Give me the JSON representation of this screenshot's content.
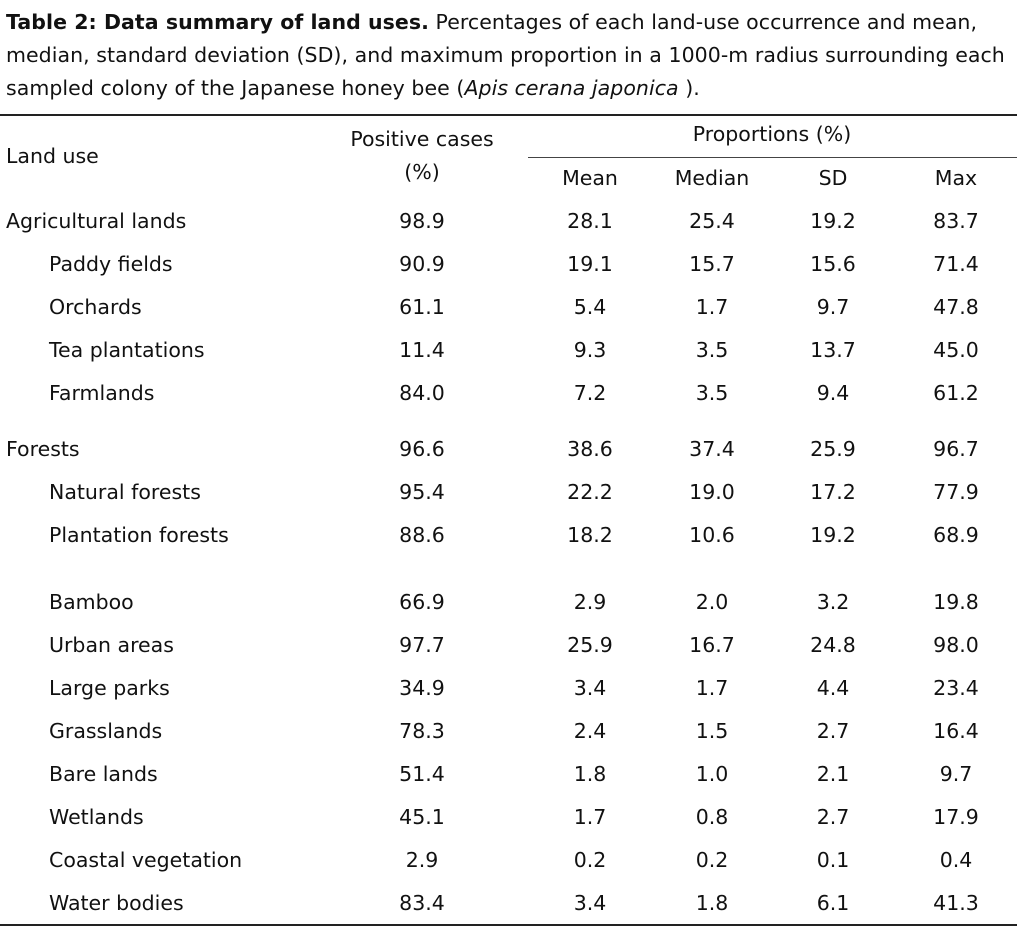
{
  "caption": {
    "bold_part": "Table 2: Data summary of land uses.",
    "line1_rest": " Percentages of each land-use occurrence and mean,",
    "line2": "median, standard deviation (SD), and maximum proportion in a 1000-m radius surrounding each",
    "line3_start": "sampled colony of the Japanese honey bee (",
    "line3_italic": "Apis cerana japonica",
    "line3_end": " )."
  },
  "headers": {
    "land_use": "Land use",
    "positive_cases_line1": "Positive cases",
    "positive_cases_line2": "(%)",
    "proportions": "Proportions (%)",
    "mean": "Mean",
    "median": "Median",
    "sd": "SD",
    "max": "Max"
  },
  "rows": [
    {
      "label": "Agricultural lands",
      "positive": "98.9",
      "mean": "28.1",
      "median": "25.4",
      "sd": "19.2",
      "max": "83.7"
    },
    {
      "label": "Paddy fields",
      "positive": "90.9",
      "mean": "19.1",
      "median": "15.7",
      "sd": "15.6",
      "max": "71.4"
    },
    {
      "label": "Orchards",
      "positive": "61.1",
      "mean": "5.4",
      "median": "1.7",
      "sd": "9.7",
      "max": "47.8"
    },
    {
      "label": "Tea plantations",
      "positive": "11.4",
      "mean": "9.3",
      "median": "3.5",
      "sd": "13.7",
      "max": "45.0"
    },
    {
      "label": "Farmlands",
      "positive": "84.0",
      "mean": "7.2",
      "median": "3.5",
      "sd": "9.4",
      "max": "61.2"
    },
    {
      "label": "Forests",
      "positive": "96.6",
      "mean": "38.6",
      "median": "37.4",
      "sd": "25.9",
      "max": "96.7"
    },
    {
      "label": "Natural forests",
      "positive": "95.4",
      "mean": "22.2",
      "median": "19.0",
      "sd": "17.2",
      "max": "77.9"
    },
    {
      "label": "Plantation forests",
      "positive": "88.6",
      "mean": "18.2",
      "median": "10.6",
      "sd": "19.2",
      "max": "68.9"
    },
    {
      "label": "Bamboo",
      "positive": "66.9",
      "mean": "2.9",
      "median": "2.0",
      "sd": "3.2",
      "max": "19.8"
    },
    {
      "label": "Urban areas",
      "positive": "97.7",
      "mean": "25.9",
      "median": "16.7",
      "sd": "24.8",
      "max": "98.0"
    },
    {
      "label": "Large parks",
      "positive": "34.9",
      "mean": "3.4",
      "median": "1.7",
      "sd": "4.4",
      "max": "23.4"
    },
    {
      "label": "Grasslands",
      "positive": "78.3",
      "mean": "2.4",
      "median": "1.5",
      "sd": "2.7",
      "max": "16.4"
    },
    {
      "label": "Bare lands",
      "positive": "51.4",
      "mean": "1.8",
      "median": "1.0",
      "sd": "2.1",
      "max": "9.7"
    },
    {
      "label": "Wetlands",
      "positive": "45.1",
      "mean": "1.7",
      "median": "0.8",
      "sd": "2.7",
      "max": "17.9"
    },
    {
      "label": "Coastal vegetation",
      "positive": "2.9",
      "mean": "0.2",
      "median": "0.2",
      "sd": "0.1",
      "max": "0.4"
    },
    {
      "label": "Water bodies",
      "positive": "83.4",
      "mean": "3.4",
      "median": "1.8",
      "sd": "6.1",
      "max": "41.3"
    }
  ]
}
